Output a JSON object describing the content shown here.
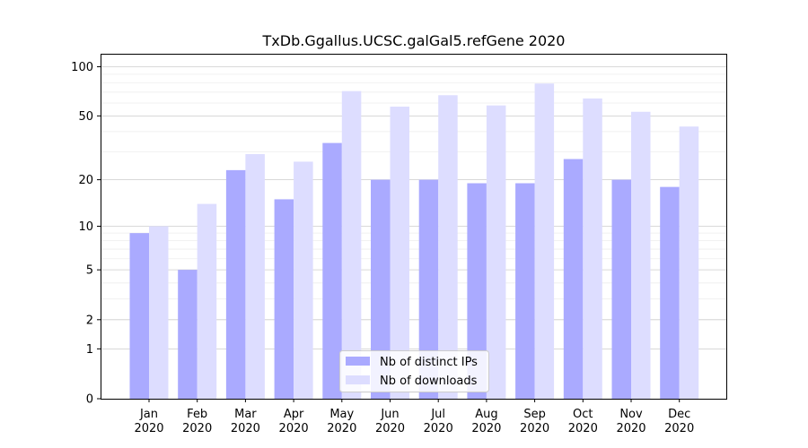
{
  "chart_data": {
    "type": "bar",
    "title": "TxDb.Ggallus.UCSC.galGal5.refGene 2020",
    "xlabel": "",
    "ylabel": "",
    "y_scale": "log(1+y)",
    "ylim": [
      0,
      120
    ],
    "y_ticks": [
      0,
      1,
      2,
      5,
      10,
      20,
      50,
      100
    ],
    "categories": [
      {
        "month": "Jan",
        "year": "2020"
      },
      {
        "month": "Feb",
        "year": "2020"
      },
      {
        "month": "Mar",
        "year": "2020"
      },
      {
        "month": "Apr",
        "year": "2020"
      },
      {
        "month": "May",
        "year": "2020"
      },
      {
        "month": "Jun",
        "year": "2020"
      },
      {
        "month": "Jul",
        "year": "2020"
      },
      {
        "month": "Aug",
        "year": "2020"
      },
      {
        "month": "Sep",
        "year": "2020"
      },
      {
        "month": "Oct",
        "year": "2020"
      },
      {
        "month": "Nov",
        "year": "2020"
      },
      {
        "month": "Dec",
        "year": "2020"
      }
    ],
    "series": [
      {
        "name": "Nb of distinct IPs",
        "color": "#aaaaff",
        "values": [
          9,
          5,
          23,
          15,
          34,
          20,
          20,
          19,
          19,
          27,
          20,
          18
        ]
      },
      {
        "name": "Nb of downloads",
        "color": "#ddddff",
        "values": [
          10,
          14,
          29,
          26,
          71,
          57,
          67,
          58,
          79,
          64,
          53,
          43
        ]
      }
    ],
    "grid": true,
    "legend_position": "bottom-center"
  }
}
